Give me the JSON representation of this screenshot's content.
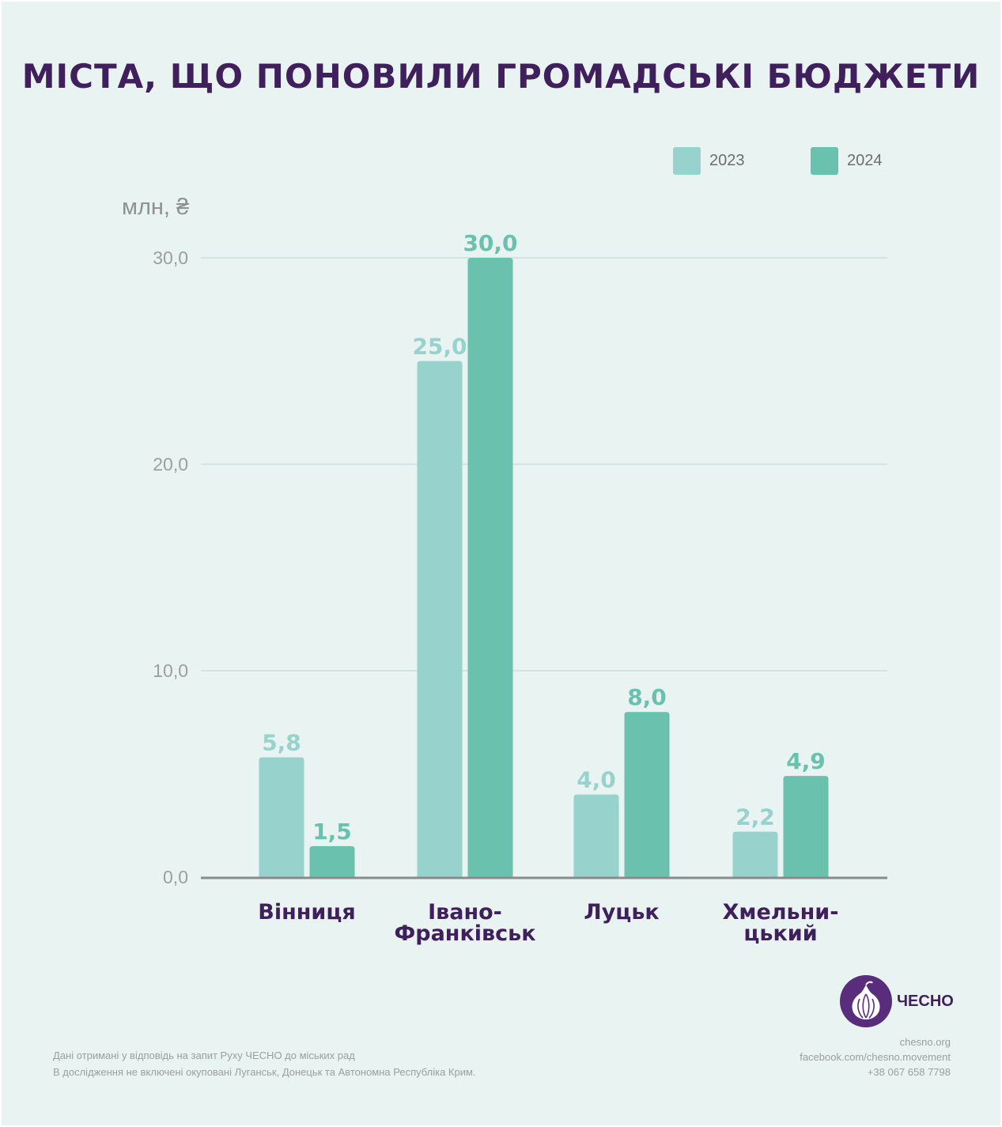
{
  "title": "МІСТА, ЩО ПОНОВИЛИ ГРОМАДСЬКІ БЮДЖЕТИ",
  "legend": [
    {
      "label": "2023",
      "color": "#98d2cc"
    },
    {
      "label": "2024",
      "color": "#69c1ae"
    }
  ],
  "chart_data": {
    "type": "bar",
    "title": "МІСТА, ЩО ПОНОВИЛИ ГРОМАДСЬКІ БЮДЖЕТИ",
    "ylabel": "млн, ₴",
    "xlabel": "",
    "ylim": [
      0,
      30
    ],
    "yticks": [
      0,
      10,
      20,
      30
    ],
    "ytick_labels": [
      "0,0",
      "10,0",
      "20,0",
      "30,0"
    ],
    "grid": true,
    "categories": [
      {
        "lines": [
          "Вінниця"
        ]
      },
      {
        "lines": [
          "Івано-",
          "Франківськ"
        ]
      },
      {
        "lines": [
          "Луцьк"
        ]
      },
      {
        "lines": [
          "Хмельни-",
          "цький"
        ]
      }
    ],
    "series": [
      {
        "name": "2023",
        "color": "#98d2cc",
        "values": [
          5.8,
          25.0,
          4.0,
          2.2
        ],
        "labels": [
          "5,8",
          "25,0",
          "4,0",
          "2,2"
        ]
      },
      {
        "name": "2024",
        "color": "#69c1ae",
        "values": [
          1.5,
          30.0,
          8.0,
          4.9
        ],
        "labels": [
          "1,5",
          "30,0",
          "8,0",
          "4,9"
        ]
      }
    ]
  },
  "footer": {
    "note_line1": "Дані отримані у відповідь на запит Руху ЧЕСНО до міських рад",
    "note_line2": "В дослідження не включені окуповані Луганськ, Донецьк та Автономна Республіка Крим.",
    "website": "chesno.org",
    "facebook": "facebook.com/chesno.movement",
    "phone": "+38 067 658 7798"
  },
  "logo": {
    "text": "ЧЕСНО"
  }
}
